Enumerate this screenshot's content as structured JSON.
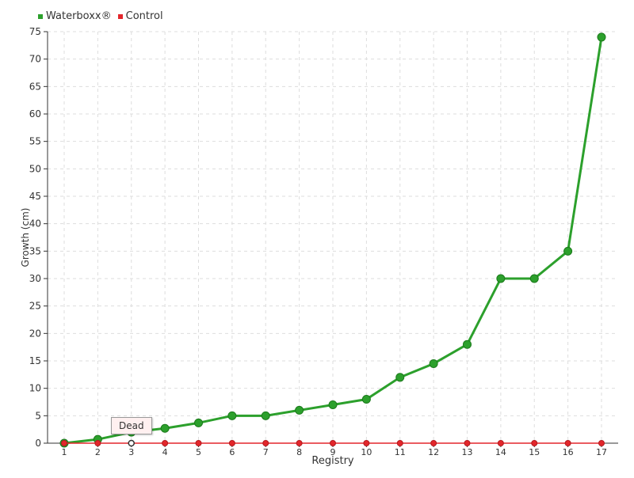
{
  "chart_data": {
    "type": "line",
    "categories": [
      "1",
      "2",
      "3",
      "4",
      "5",
      "6",
      "7",
      "8",
      "9",
      "10",
      "11",
      "12",
      "13",
      "14",
      "15",
      "16",
      "17"
    ],
    "series": [
      {
        "name": "Waterboxx®",
        "color": "#2ca02c",
        "values": [
          0,
          0.7,
          2,
          2.7,
          3.7,
          5,
          5,
          6,
          7,
          8,
          12,
          14.5,
          18,
          30,
          30,
          35,
          74
        ]
      },
      {
        "name": "Control",
        "color": "#e3262b",
        "values": [
          0,
          0,
          0,
          0,
          0,
          0,
          0,
          0,
          0,
          0,
          0,
          0,
          0,
          0,
          0,
          0,
          0
        ]
      }
    ],
    "xlabel": "Registry",
    "ylabel": "Growth (cm)",
    "ylim": [
      0,
      75
    ],
    "yticks": [
      0,
      5,
      10,
      15,
      20,
      25,
      30,
      35,
      40,
      45,
      50,
      55,
      60,
      65,
      70,
      75
    ],
    "grid": true,
    "legend": "top-left",
    "tooltip": "Dead"
  }
}
